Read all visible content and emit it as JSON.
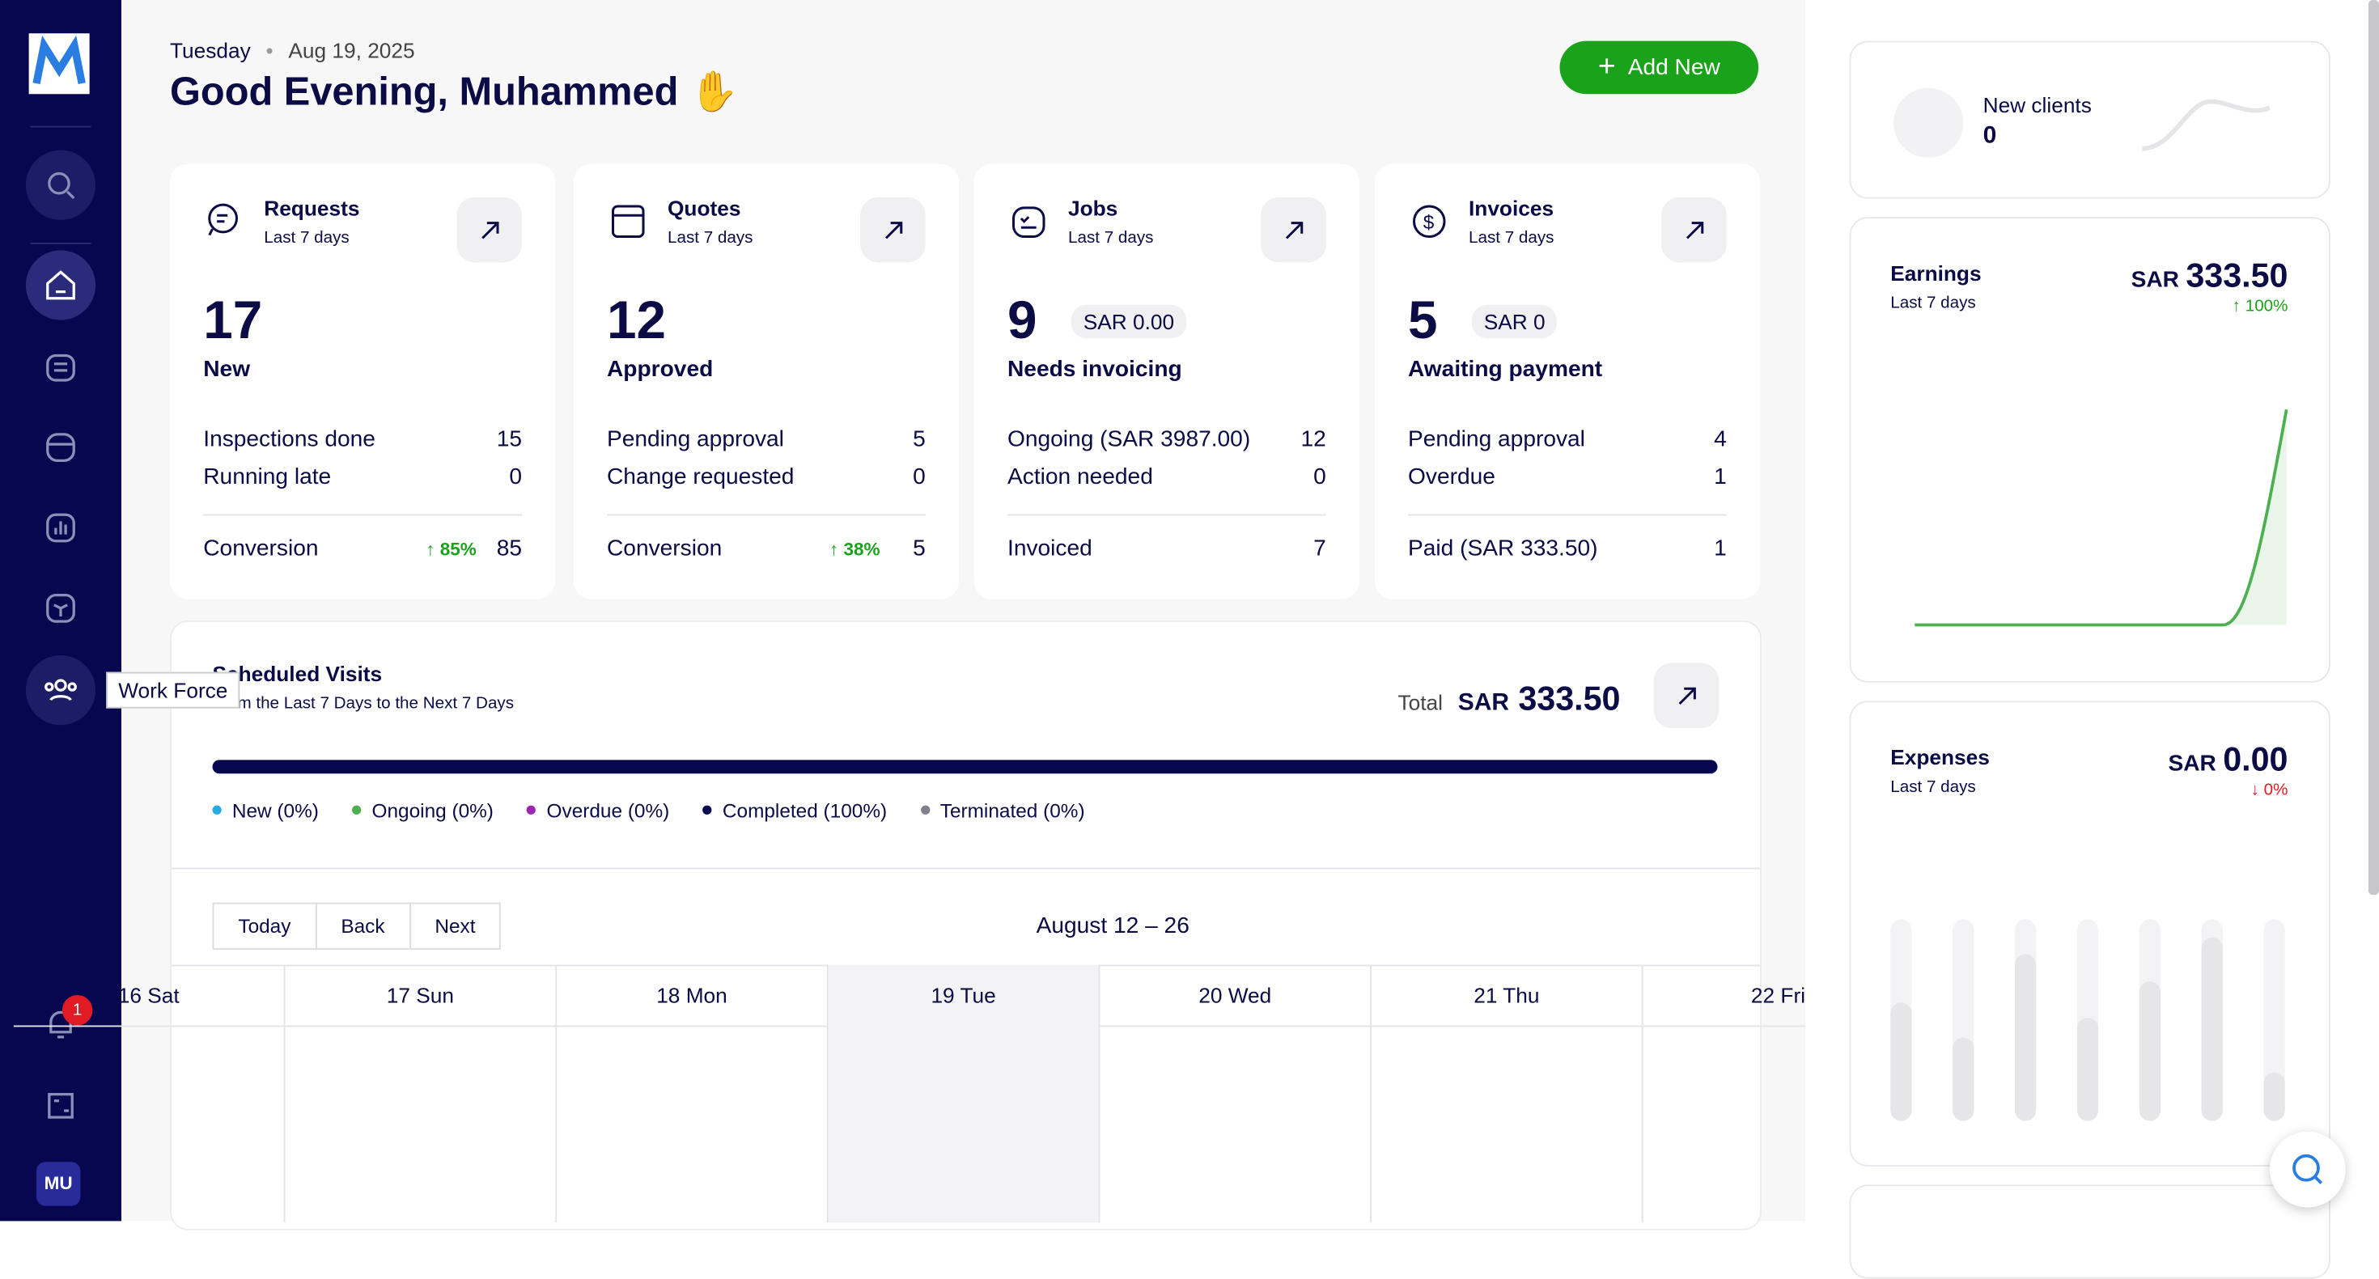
{
  "sidebar": {
    "tooltip": "Work Force",
    "badge": "1",
    "avatar": "MU"
  },
  "header": {
    "day": "Tuesday",
    "date": "Aug 19, 2025",
    "greeting": "Good Evening, Muhammed",
    "add_button": "Add New"
  },
  "cards": [
    {
      "title": "Requests",
      "period": "Last 7 days",
      "number": "17",
      "label": "New",
      "rows": [
        [
          "Inspections done",
          "15"
        ],
        [
          "Running late",
          "0"
        ]
      ],
      "footer": {
        "label": "Conversion",
        "change": "↑ 85%",
        "value": "85"
      }
    },
    {
      "title": "Quotes",
      "period": "Last 7 days",
      "number": "12",
      "label": "Approved",
      "rows": [
        [
          "Pending approval",
          "5"
        ],
        [
          "Change requested",
          "0"
        ]
      ],
      "footer": {
        "label": "Conversion",
        "change": "↑ 38%",
        "value": "5"
      }
    },
    {
      "title": "Jobs",
      "period": "Last 7 days",
      "number": "9",
      "badge": "SAR 0.00",
      "label": "Needs invoicing",
      "rows": [
        [
          "Ongoing (SAR 3987.00)",
          "12"
        ],
        [
          "Action needed",
          "0"
        ]
      ],
      "footer": {
        "label": "Invoiced",
        "value": "7"
      }
    },
    {
      "title": "Invoices",
      "period": "Last 7 days",
      "number": "5",
      "badge": "SAR 0",
      "label": "Awaiting payment",
      "rows": [
        [
          "Pending approval",
          "4"
        ],
        [
          "Overdue",
          "1"
        ]
      ],
      "footer": {
        "label": "Paid (SAR 333.50)",
        "value": "1"
      }
    }
  ],
  "visits": {
    "title": "Scheduled Visits",
    "subtitle": "From the Last 7 Days to the Next 7 Days",
    "total_label": "Total",
    "currency": "SAR",
    "total": "333.50",
    "legend": [
      {
        "label": "New (0%)",
        "color": "#29a9e0"
      },
      {
        "label": "Ongoing (0%)",
        "color": "#4caf50"
      },
      {
        "label": "Overdue (0%)",
        "color": "#9c27b0"
      },
      {
        "label": "Completed (100%)",
        "color": "#07074f"
      },
      {
        "label": "Terminated (0%)",
        "color": "#80808a"
      }
    ]
  },
  "calendar": {
    "buttons": [
      "Today",
      "Back",
      "Next"
    ],
    "range": "August 12 – 26",
    "days": [
      "16 Sat",
      "17 Sun",
      "18 Mon",
      "19 Tue",
      "20 Wed",
      "21 Thu",
      "22 Fri"
    ]
  },
  "right": {
    "new_clients": {
      "title": "New clients",
      "value": "0"
    },
    "earnings": {
      "title": "Earnings",
      "period": "Last 7 days",
      "currency": "SAR",
      "value": "333.50",
      "change": "↑ 100%"
    },
    "expenses": {
      "title": "Expenses",
      "period": "Last 7 days",
      "currency": "SAR",
      "value": "0.00",
      "change": "↓ 0%"
    }
  }
}
